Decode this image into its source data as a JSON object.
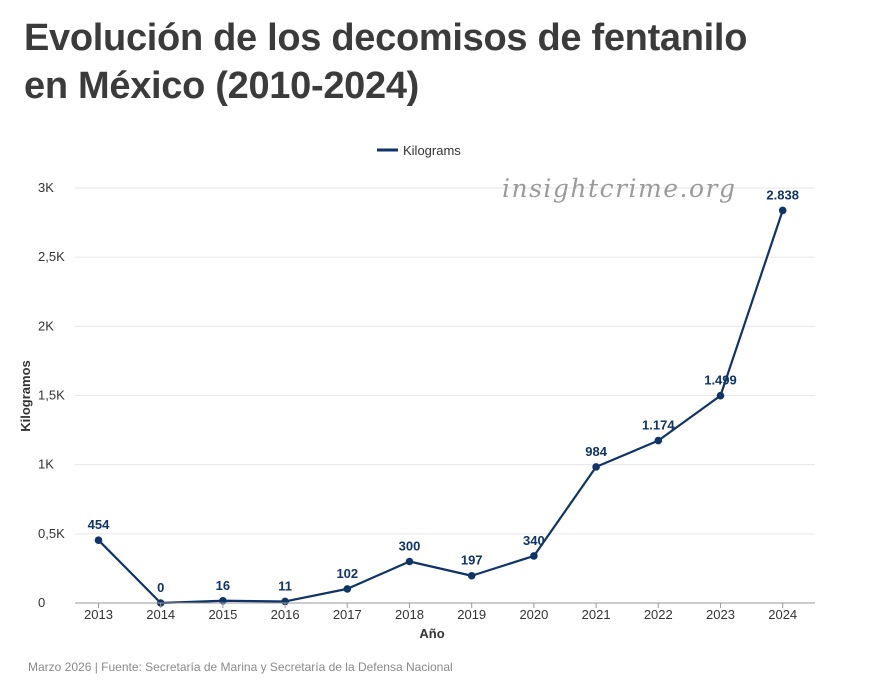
{
  "title_lines": [
    "Evolución de los decomisos de fentanilo",
    "en México (2010-2024)"
  ],
  "watermark": "insightcrime.org",
  "footer": "Marzo 2026 | Fuente: Secretaría de Marina y Secretaría de la Defensa Nacional",
  "colors": {
    "series": "#0e3468",
    "grid": "#e6e6e6",
    "axis_text": "#333333",
    "title": "#3b3b3b"
  },
  "chart_data": {
    "type": "line",
    "xlabel": "Año",
    "ylabel": "Kilogramos",
    "ylim": [
      0,
      3000
    ],
    "y_ticks": [
      {
        "value": 0,
        "label": "0"
      },
      {
        "value": 500,
        "label": "0,5K"
      },
      {
        "value": 1000,
        "label": "1K"
      },
      {
        "value": 1500,
        "label": "1,5K"
      },
      {
        "value": 2000,
        "label": "2K"
      },
      {
        "value": 2500,
        "label": "2,5K"
      },
      {
        "value": 3000,
        "label": "3K"
      }
    ],
    "grid": true,
    "legend_position": "top-center",
    "x": [
      "2013",
      "2014",
      "2015",
      "2016",
      "2017",
      "2018",
      "2019",
      "2020",
      "2021",
      "2022",
      "2023",
      "2024"
    ],
    "series": [
      {
        "name": "Kilograms",
        "values": [
          454,
          0,
          16,
          11,
          102,
          300,
          197,
          340,
          984,
          1174,
          1499,
          2838
        ],
        "labels": [
          "454",
          "0",
          "16",
          "11",
          "102",
          "300",
          "197",
          "340",
          "984",
          "1.174",
          "1.499",
          "2.838"
        ]
      }
    ]
  }
}
